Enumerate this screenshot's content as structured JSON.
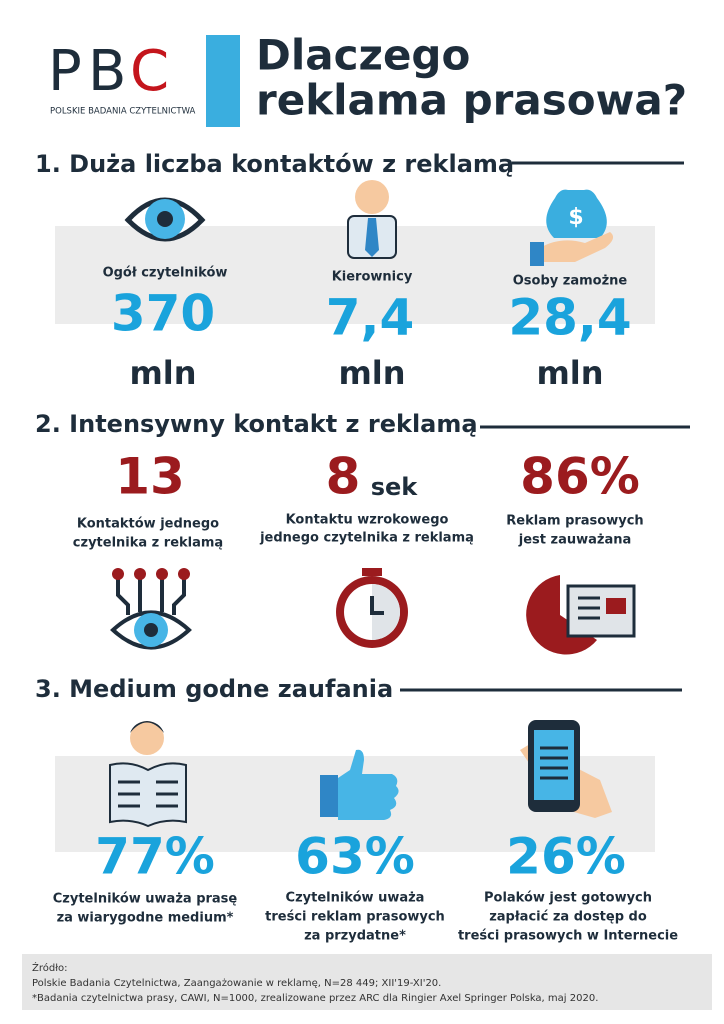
{
  "header": {
    "logo_letters": [
      "P",
      "B",
      "C"
    ],
    "logo_subtitle": "POLSKIE BADANIA CZYTELNICTWA",
    "title_lines": [
      "Dlaczego",
      "reklama prasowa?"
    ]
  },
  "sections": [
    {
      "heading": "1. Duża liczba kontaktów z reklamą",
      "items": [
        {
          "label": "Ogół czytelników",
          "value": "370",
          "unit": "mln"
        },
        {
          "label": "Kierownicy",
          "value": "7,4",
          "unit": "mln"
        },
        {
          "label": "Osoby zamożne",
          "value": "28,4",
          "unit": "mln"
        }
      ]
    },
    {
      "heading": "2. Intensywny kontakt z reklamą",
      "items": [
        {
          "value": "13",
          "label_lines": [
            "Kontaktów jednego",
            "czytelnika z reklamą"
          ]
        },
        {
          "value": "8",
          "unit": "sek",
          "label_lines": [
            "Kontaktu wzrokowego",
            "jednego czytelnika z reklamą"
          ]
        },
        {
          "value": "86%",
          "label_lines": [
            "Reklam prasowych",
            "jest zauważana"
          ]
        }
      ]
    },
    {
      "heading": "3. Medium godne zaufania",
      "items": [
        {
          "value": "77%",
          "label_lines": [
            "Czytelników uważa prasę",
            "za wiarygodne medium*"
          ]
        },
        {
          "value": "63%",
          "label_lines": [
            "Czytelników uważa",
            "treści reklam prasowych",
            "za przydatne*"
          ]
        },
        {
          "value": "26%",
          "label_lines": [
            "Polaków jest gotowych",
            "zapłacić za dostęp do",
            "treści prasowych w Internecie"
          ]
        }
      ]
    }
  ],
  "footer": {
    "lines": [
      "Źródło:",
      "Polskie Badania Czytelnictwa, Zaangażowanie w reklamę, N=28 449; XII'19-XI'20.",
      "*Badania czytelnictwa prasy, CAWI, N=1000, zrealizowane przez ARC dla Ringier Axel Springer Polska, maj 2020."
    ]
  }
}
